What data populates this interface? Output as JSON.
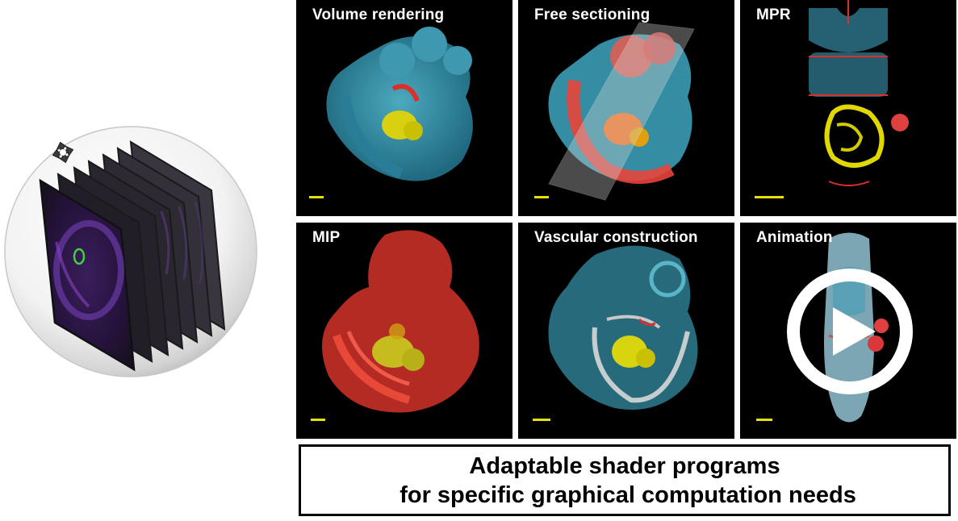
{
  "panels": [
    {
      "id": "volume",
      "label": "Volume rendering"
    },
    {
      "id": "free",
      "label": "Free sectioning"
    },
    {
      "id": "mpr",
      "label": "MPR"
    },
    {
      "id": "mip",
      "label": "MIP"
    },
    {
      "id": "vascular",
      "label": "Vascular construction"
    },
    {
      "id": "animation",
      "label": "Animation"
    }
  ],
  "caption": {
    "line1": "Adaptable shader programs",
    "line2": " for specific graphical computation needs"
  },
  "icons": {
    "move": "move-arrows-icon",
    "play": "play-icon"
  },
  "colors": {
    "cyan": "#3aa0b8",
    "red": "#e8342c",
    "yellow": "#e6e200",
    "purple": "#6a2ca0",
    "border": "#000000"
  }
}
